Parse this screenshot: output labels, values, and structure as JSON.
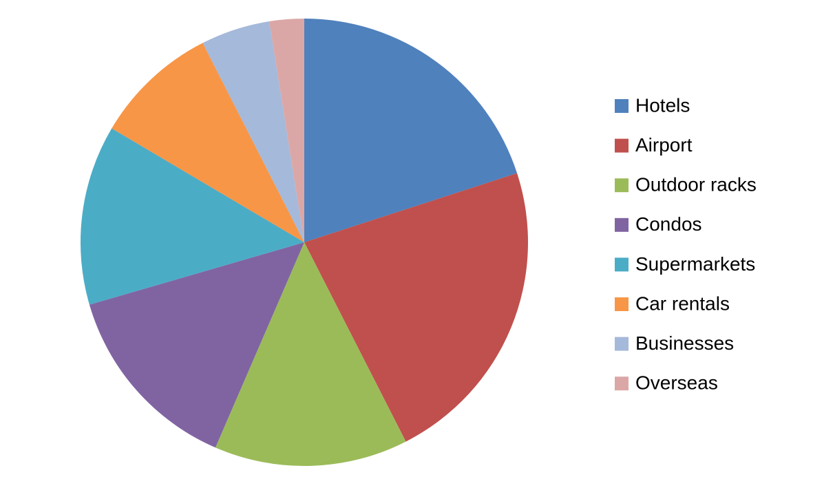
{
  "chart_data": {
    "type": "pie",
    "categories": [
      "Hotels",
      "Airport",
      "Outdoor racks",
      "Condos",
      "Supermarkets",
      "Car rentals",
      "Businesses",
      "Overseas"
    ],
    "values": [
      20,
      22.5,
      14,
      14,
      13,
      9,
      5,
      2.5
    ],
    "colors": [
      "#4f81bd",
      "#c0504d",
      "#9bbb59",
      "#8064a2",
      "#4bacc6",
      "#f79646",
      "#a5b9da",
      "#dba7a6"
    ],
    "legend": "right"
  }
}
